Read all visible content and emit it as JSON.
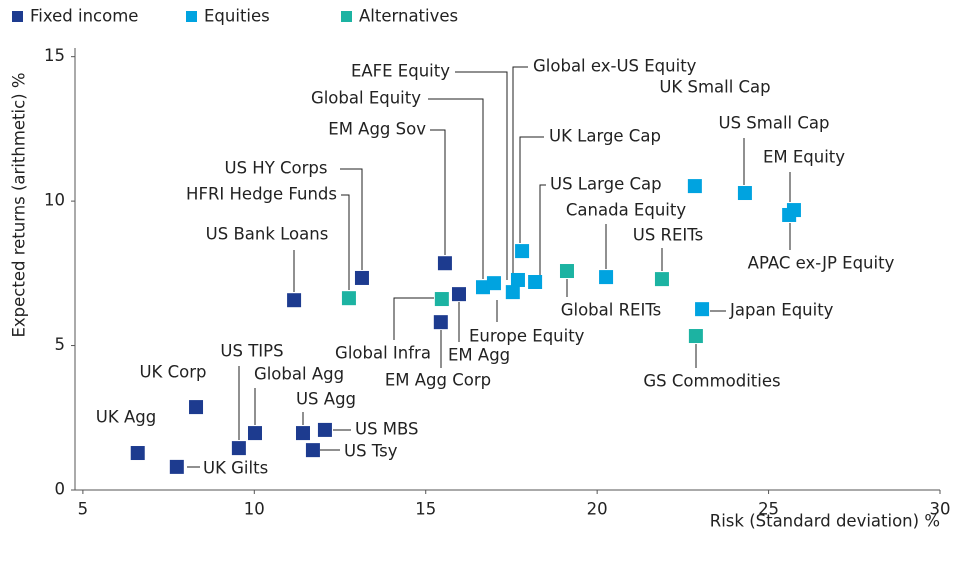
{
  "chart_data": {
    "type": "scatter",
    "xlabel": "Risk (Standard deviation) %",
    "ylabel": "Expected returns (arithmetic) %",
    "xlim": [
      4.77,
      30
    ],
    "ylim": [
      0,
      15.3
    ],
    "xticks": [
      5,
      10,
      15,
      20,
      25,
      30
    ],
    "yticks": [
      0,
      5,
      10,
      15
    ],
    "legend": "top-left",
    "series": [
      {
        "name": "Fixed income",
        "color": "#1d3b8f",
        "labels": [
          "UK Agg",
          "UK Gilts",
          "UK Corp",
          "US TIPS",
          "Global Agg",
          "US Agg",
          "US Tsy",
          "US MBS",
          "US Bank Loans",
          "US HY Corps",
          "EM Agg Sov",
          "EM Agg Corp",
          "EM Agg"
        ],
        "x": [
          6.6,
          7.74,
          8.3,
          9.55,
          10.02,
          11.42,
          11.71,
          12.06,
          11.16,
          13.14,
          15.56,
          15.44,
          15.97
        ],
        "values": [
          1.28,
          0.8,
          2.87,
          1.45,
          1.97,
          1.97,
          1.38,
          2.08,
          6.57,
          7.34,
          7.85,
          5.81,
          6.78
        ]
      },
      {
        "name": "Equities",
        "color": "#00a3e0",
        "labels": [
          "Global Equity",
          "Europe Equity",
          "EAFE Equity",
          "Global ex-US Equity",
          "UK Large Cap",
          "US Large Cap",
          "Canada Equity",
          "UK Small Cap",
          "US Small Cap",
          "EM Equity",
          "APAC ex-JP Equity",
          "Japan Equity"
        ],
        "x": [
          16.67,
          16.99,
          17.54,
          17.69,
          17.81,
          18.19,
          20.26,
          22.85,
          24.31,
          25.74,
          25.6,
          23.06
        ],
        "values": [
          7.02,
          7.16,
          6.85,
          7.27,
          8.27,
          7.2,
          7.37,
          10.52,
          10.28,
          9.69,
          9.52,
          6.26
        ]
      },
      {
        "name": "Alternatives",
        "color": "#1cb3a2",
        "labels": [
          "HFRI Hedge Funds",
          "Global Infra",
          "Global REITs",
          "US REITs",
          "GS Commodities"
        ],
        "x": [
          12.76,
          15.47,
          19.12,
          21.89,
          22.88
        ],
        "values": [
          6.64,
          6.61,
          7.58,
          7.3,
          5.33
        ]
      }
    ]
  }
}
